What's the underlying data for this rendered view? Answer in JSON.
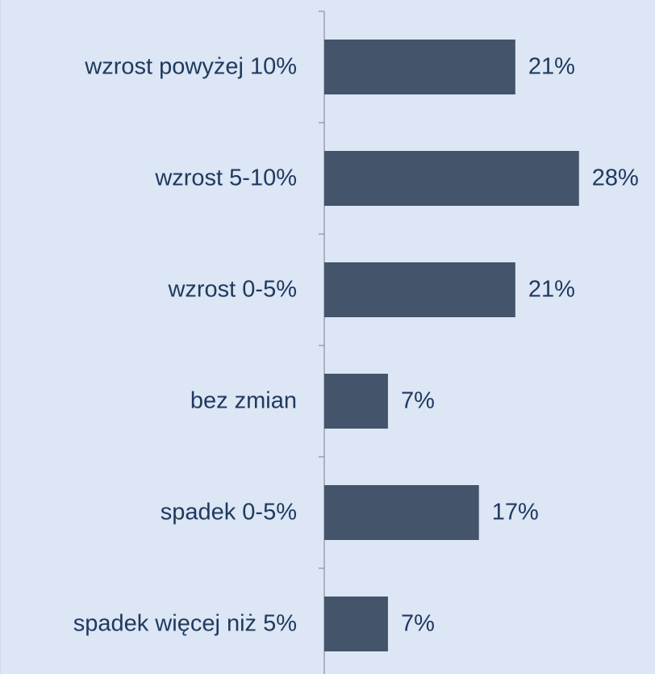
{
  "chart_data": {
    "type": "barh",
    "categories": [
      "wzrost powyżej 10%",
      "wzrost 5-10%",
      "wzrost 0-5%",
      "bez zmian",
      "spadek 0-5%",
      "spadek więcej niż 5%"
    ],
    "values": [
      21,
      28,
      21,
      7,
      17,
      7
    ],
    "value_labels": [
      "21%",
      "28%",
      "21%",
      "7%",
      "17%",
      "7%"
    ],
    "color": "#44546a",
    "xlim": [
      0,
      36
    ]
  }
}
